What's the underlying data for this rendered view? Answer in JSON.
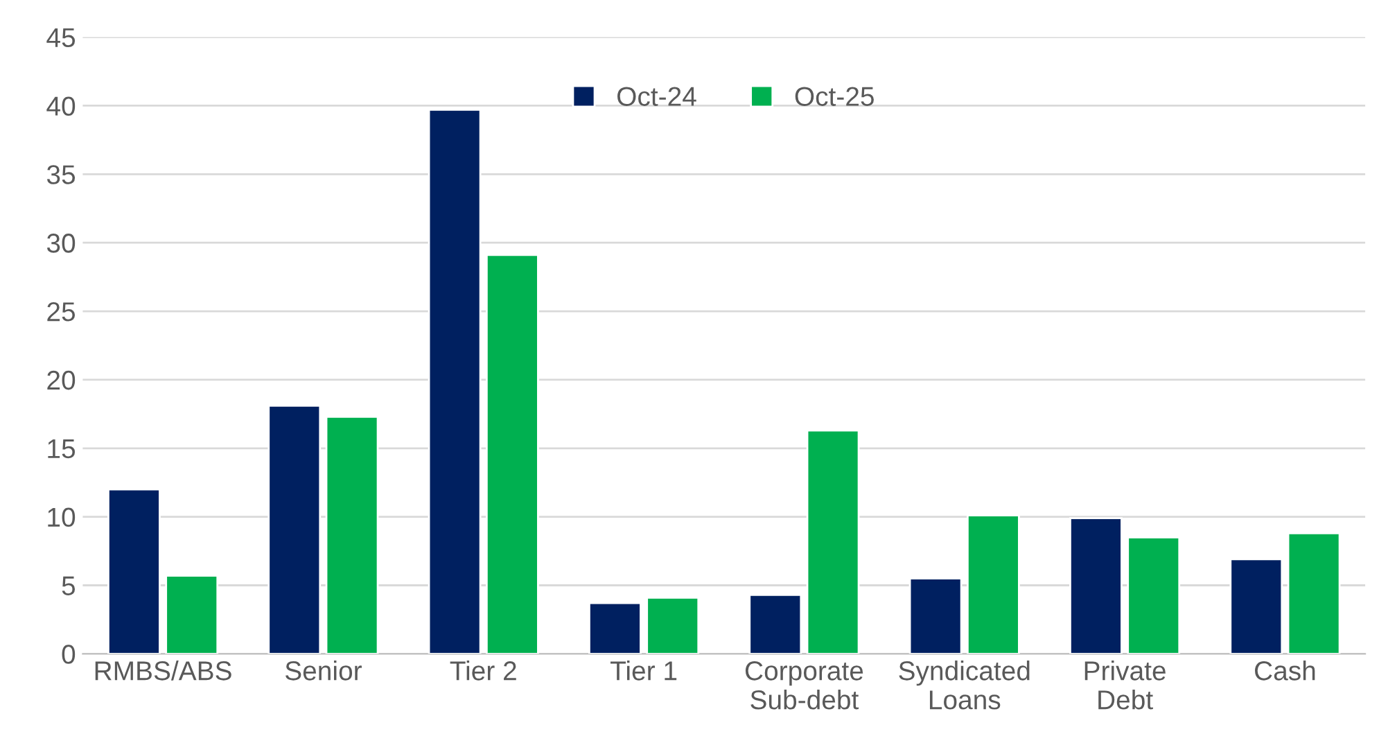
{
  "chart_data": {
    "type": "bar",
    "categories": [
      "RMBS/ABS",
      "Senior",
      "Tier 2",
      "Tier 1",
      "Corporate\nSub-debt",
      "Syndicated\nLoans",
      "Private\nDebt",
      "Cash"
    ],
    "series": [
      {
        "name": "Oct-24",
        "color": "#002060",
        "values": [
          12.0,
          18.1,
          39.7,
          3.7,
          4.3,
          5.5,
          9.9,
          6.9
        ]
      },
      {
        "name": "Oct-25",
        "color": "#00b050",
        "values": [
          5.7,
          17.3,
          29.1,
          4.1,
          16.3,
          10.1,
          8.5,
          8.8
        ]
      }
    ],
    "ylim": [
      0,
      45
    ],
    "yticks": [
      0,
      5,
      10,
      15,
      20,
      25,
      30,
      35,
      40,
      45
    ],
    "grid": "y",
    "legend": "top"
  }
}
